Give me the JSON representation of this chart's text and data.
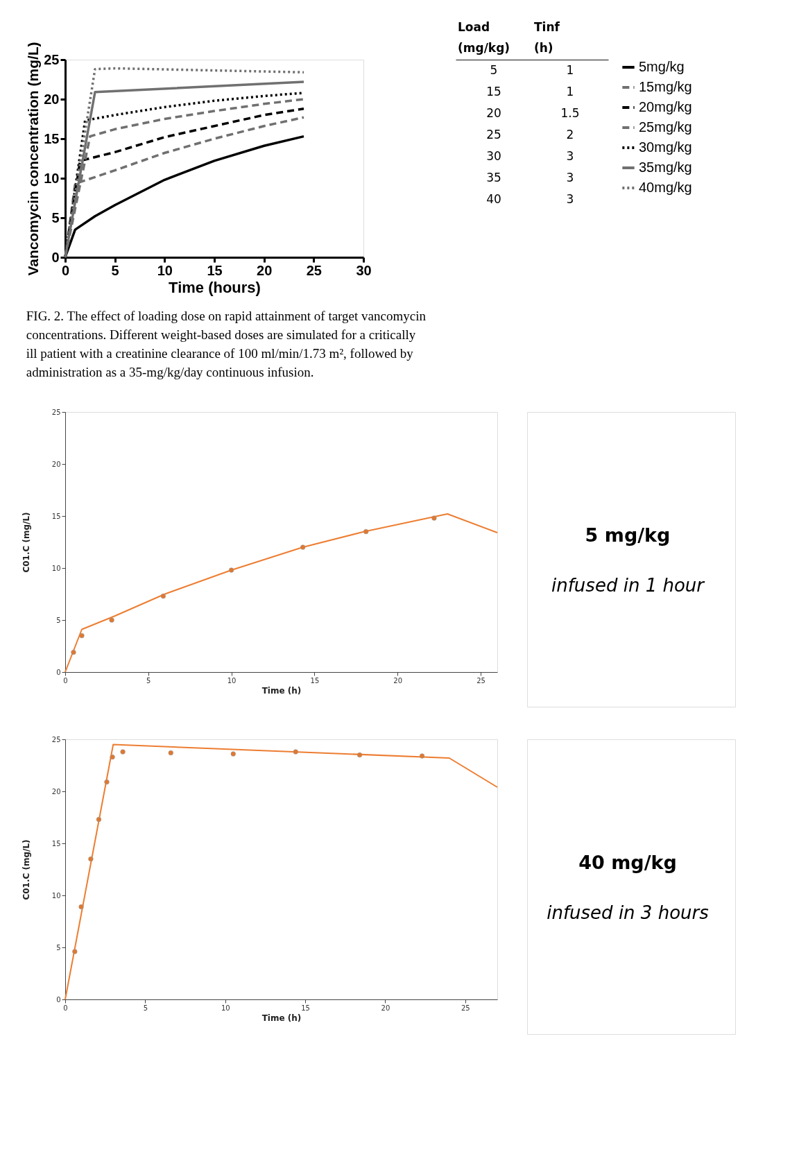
{
  "chart_data": [
    {
      "type": "line",
      "xlabel": "Time (hours)",
      "ylabel": "Vancomycin concentration (mg/L)",
      "xlim": [
        0,
        30
      ],
      "xticks": [
        0,
        5,
        10,
        15,
        20,
        25,
        30
      ],
      "ylim": [
        0,
        25
      ],
      "yticks": [
        0,
        5,
        10,
        15,
        20,
        25
      ],
      "grid": false,
      "legend": "right",
      "annotations": [
        "FIG. 2. The effect of loading dose on rapid attainment of target vancomycin concentrations. Different weight-based doses are simulated for a critically ill patient with a creatinine clearance of 100 ml/min/1.73 m², followed by administration as a 35-mg/kg/day continuous infusion."
      ],
      "series": [
        {
          "name": "5mg/kg",
          "color": "#000000",
          "line_style": "solid",
          "x": [
            0,
            1,
            3,
            5,
            10,
            15,
            20,
            24
          ],
          "values": [
            0,
            3.5,
            5.2,
            6.6,
            9.8,
            12.2,
            14.1,
            15.3
          ]
        },
        {
          "name": "15mg/kg",
          "color": "#707070",
          "line_style": "dashed",
          "x": [
            0,
            1,
            5,
            10,
            15,
            20,
            24
          ],
          "values": [
            0,
            9.3,
            11,
            13.2,
            15,
            16.6,
            17.7
          ]
        },
        {
          "name": "20mg/kg",
          "color": "#000000",
          "line_style": "dashed",
          "x": [
            0,
            1.5,
            5,
            10,
            15,
            20,
            24
          ],
          "values": [
            0,
            12.2,
            13.3,
            15.2,
            16.6,
            18,
            18.8
          ]
        },
        {
          "name": "25mg/kg",
          "color": "#707070",
          "line_style": "dashed",
          "x": [
            0,
            2.5,
            5,
            10,
            15,
            20,
            24
          ],
          "values": [
            0,
            15.3,
            16.2,
            17.5,
            18.5,
            19.4,
            20
          ]
        },
        {
          "name": "30mg/kg",
          "color": "#000000",
          "line_style": "dotted",
          "x": [
            0,
            2,
            5,
            10,
            15,
            20,
            24
          ],
          "values": [
            0,
            17.3,
            18,
            19,
            19.8,
            20.4,
            20.8
          ]
        },
        {
          "name": "35mg/kg",
          "color": "#707070",
          "line_style": "solid",
          "x": [
            0,
            3,
            24
          ],
          "values": [
            0,
            20.9,
            22.2
          ]
        },
        {
          "name": "40mg/kg",
          "color": "#707070",
          "line_style": "dotted",
          "x": [
            0,
            3,
            5,
            24
          ],
          "values": [
            0,
            23.8,
            23.9,
            23.4
          ]
        }
      ]
    },
    {
      "type": "heatmap",
      "categories": [
        "Load (mg/kg)",
        "Tinf (h)"
      ],
      "y_categories": [
        null,
        null,
        null,
        null,
        null,
        null,
        null
      ],
      "data_labels": true,
      "cells": [
        [
          5,
          1
        ],
        [
          15,
          1
        ],
        [
          20,
          1.5
        ],
        [
          25,
          2
        ],
        [
          30,
          3
        ],
        [
          35,
          3
        ],
        [
          40,
          3
        ]
      ]
    },
    {
      "type": "line",
      "xlabel": "Time (h)",
      "ylabel": "C01.C (mg/L)",
      "xlim": [
        0,
        26
      ],
      "xticks": [
        0,
        5,
        10,
        15,
        20,
        25
      ],
      "ylim": [
        0,
        25
      ],
      "yticks": [
        0,
        5,
        10,
        15,
        20,
        25
      ],
      "grid": false,
      "series": [
        {
          "type": "line",
          "color": "#ed7d31",
          "x": [
            0,
            1,
            3,
            6,
            10,
            14.3,
            18,
            23,
            26
          ],
          "values": [
            0,
            4.1,
            5.4,
            7.5,
            9.8,
            12,
            13.5,
            15.2,
            13.4
          ]
        },
        {
          "type": "scatter",
          "color": "#e0782f",
          "marker": "circle",
          "x": [
            0.5,
            1,
            2.8,
            5.9,
            10,
            14.3,
            18.1,
            22.2
          ],
          "values": [
            1.9,
            3.5,
            5,
            7.3,
            9.8,
            12,
            13.5,
            14.8
          ]
        }
      ]
    },
    {
      "type": "other",
      "title": "5 mg/kg",
      "subtitle": "infused in 1 hour"
    },
    {
      "type": "line",
      "xlabel": "Time (h)",
      "ylabel": "C01.C (mg/L)",
      "xlim": [
        0,
        27
      ],
      "xticks": [
        0,
        5,
        10,
        15,
        20,
        25
      ],
      "ylim": [
        0,
        25
      ],
      "yticks": [
        0,
        5,
        10,
        15,
        20,
        25
      ],
      "grid": false,
      "series": [
        {
          "type": "line",
          "color": "#ed7d31",
          "x": [
            0,
            3,
            24,
            27
          ],
          "values": [
            0,
            24.5,
            23.2,
            20.4
          ]
        },
        {
          "type": "scatter",
          "color": "#e0782f",
          "marker": "circle",
          "x": [
            0.6,
            1,
            1.6,
            2.1,
            2.6,
            2.95,
            3.6,
            6.6,
            10.5,
            14.4,
            18.4,
            22.3
          ],
          "values": [
            4.6,
            8.9,
            13.5,
            17.3,
            20.9,
            23.3,
            23.8,
            23.7,
            23.6,
            23.8,
            23.5,
            23.4
          ]
        }
      ]
    },
    {
      "type": "other",
      "title": "40 mg/kg",
      "subtitle": "infused in 3 hours"
    }
  ]
}
